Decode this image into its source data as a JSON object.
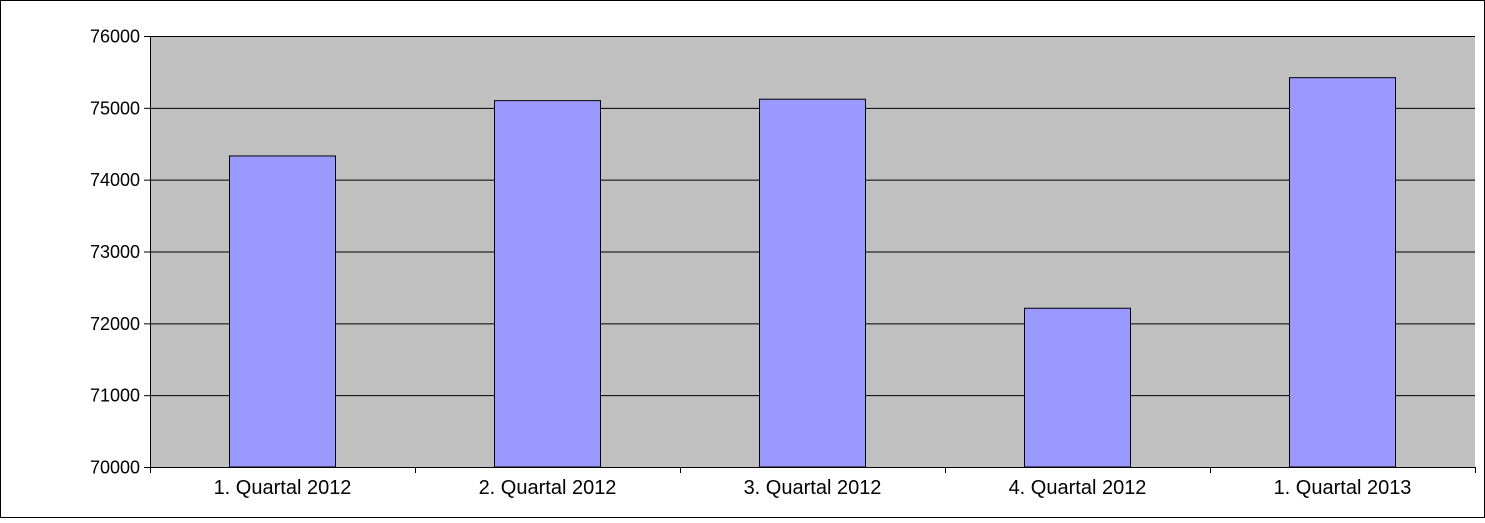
{
  "chart_data": {
    "type": "bar",
    "title": "",
    "xlabel": "",
    "ylabel": "",
    "categories": [
      "1. Quartal 2012",
      "2. Quartal 2012",
      "3. Quartal 2012",
      "4. Quartal 2012",
      "1. Quartal 2013"
    ],
    "values": [
      74330,
      75100,
      75120,
      72210,
      75420
    ],
    "ylim": [
      70000,
      76000
    ],
    "yticks": [
      "70000",
      "71000",
      "72000",
      "73000",
      "74000",
      "75000",
      "76000"
    ],
    "grid": true,
    "legend": "none",
    "colors": {
      "bar_fill": "#9999ff",
      "bar_stroke": "#000000",
      "plot_background": "#c0c0c0",
      "gridline": "#000000",
      "frame": "#000000"
    }
  }
}
